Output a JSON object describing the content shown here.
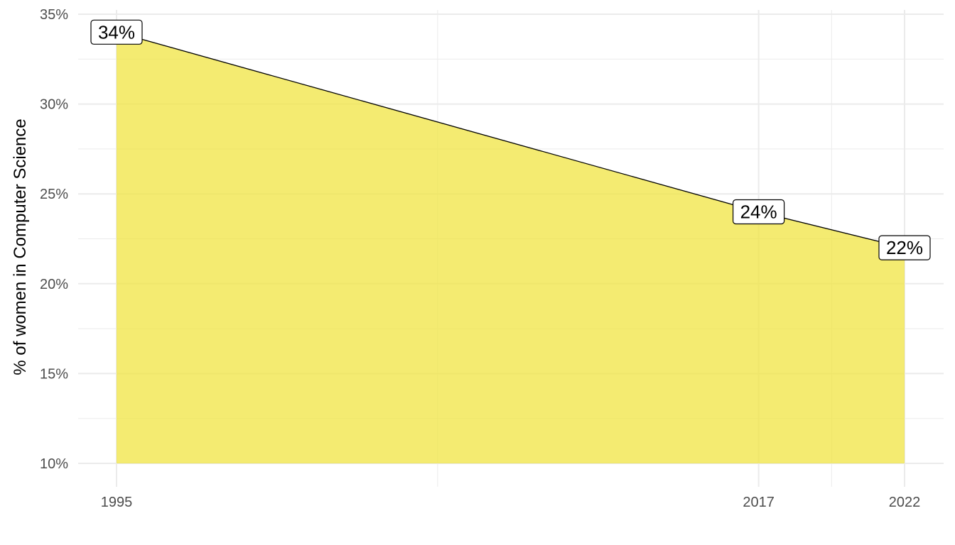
{
  "chart_data": {
    "type": "area",
    "title": "",
    "xlabel": "",
    "ylabel": "% of women in Computer Science",
    "x": [
      1995,
      2017,
      2022
    ],
    "series": [
      {
        "values": [
          34,
          24,
          22
        ]
      }
    ],
    "data_labels": [
      "34%",
      "24%",
      "22%"
    ],
    "x_ticks": [
      1995,
      2017,
      2022
    ],
    "x_tick_labels": [
      "1995",
      "2017",
      "2022"
    ],
    "y_ticks": [
      10,
      15,
      20,
      25,
      30,
      35
    ],
    "y_tick_labels": [
      "10%",
      "15%",
      "20%",
      "25%",
      "30%",
      "35%"
    ],
    "xlim": [
      1995,
      2022
    ],
    "ylim": [
      10,
      35
    ],
    "baseline": 10,
    "grid": true,
    "legend": "none",
    "colors": {
      "fill": "#F0E442",
      "line": "#000000",
      "grid": "#EBEBEB"
    }
  }
}
